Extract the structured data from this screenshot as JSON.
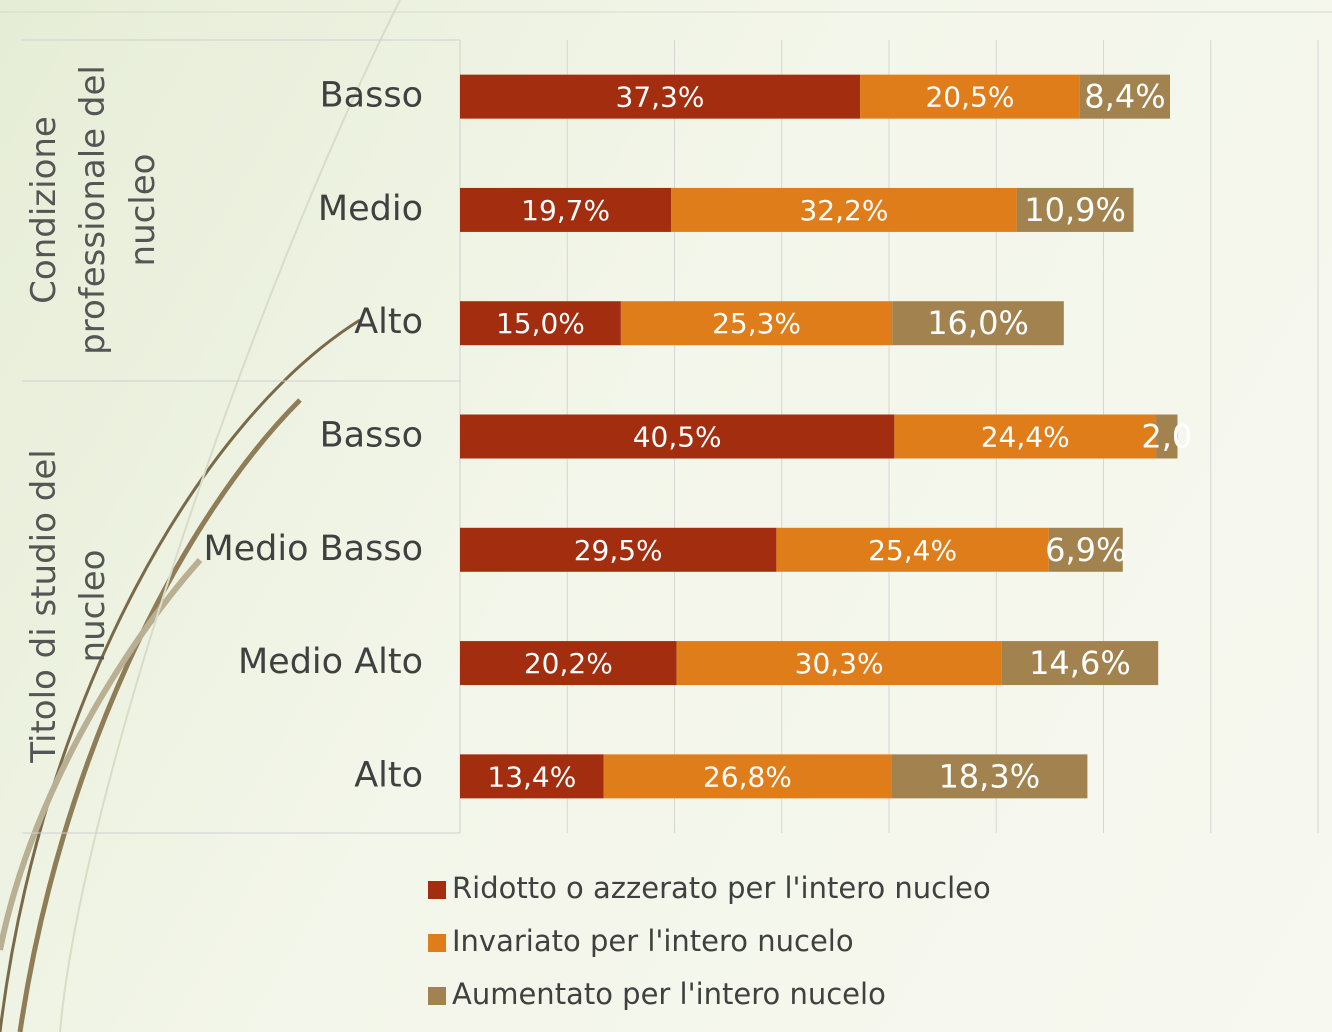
{
  "chart_data": {
    "type": "stacked-bar-horizontal",
    "groups": [
      {
        "name": "Condizione professionale del nucleo",
        "categories": [
          "Basso",
          "Medio",
          "Alto"
        ]
      },
      {
        "name": "Titolo di studio del nucleo",
        "categories": [
          "Basso",
          "Medio Basso",
          "Medio Alto",
          "Alto"
        ]
      }
    ],
    "series": [
      {
        "name": "Ridotto o azzerato per l'intero nucleo",
        "color": "#a32d0f",
        "values": [
          37.3,
          19.7,
          15.0,
          40.5,
          29.5,
          20.2,
          13.4
        ],
        "value_labels": [
          "37,3%",
          "19,7%",
          "15,0%",
          "40,5%",
          "29,5%",
          "20,2%",
          "13,4%"
        ]
      },
      {
        "name": "Invariato per l'intero nucelo",
        "color": "#e07d1b",
        "values": [
          20.5,
          32.2,
          25.3,
          24.4,
          25.4,
          30.3,
          26.8
        ],
        "value_labels": [
          "20,5%",
          "32,2%",
          "25,3%",
          "24,4%",
          "25,4%",
          "30,3%",
          "26,8%"
        ]
      },
      {
        "name": "Aumentato per l'intero nucelo",
        "color": "#a2834f",
        "values": [
          8.4,
          10.9,
          16.0,
          2.0,
          6.9,
          14.6,
          18.3
        ],
        "value_labels": [
          "8,4%",
          "10,9%",
          "16,0%",
          "2,0",
          "6,9%",
          "14,6%",
          "18,3%"
        ]
      }
    ],
    "xlim": [
      0,
      80
    ],
    "xticks": [
      0,
      10,
      20,
      30,
      40,
      50,
      60,
      70,
      80
    ],
    "grid": true
  }
}
